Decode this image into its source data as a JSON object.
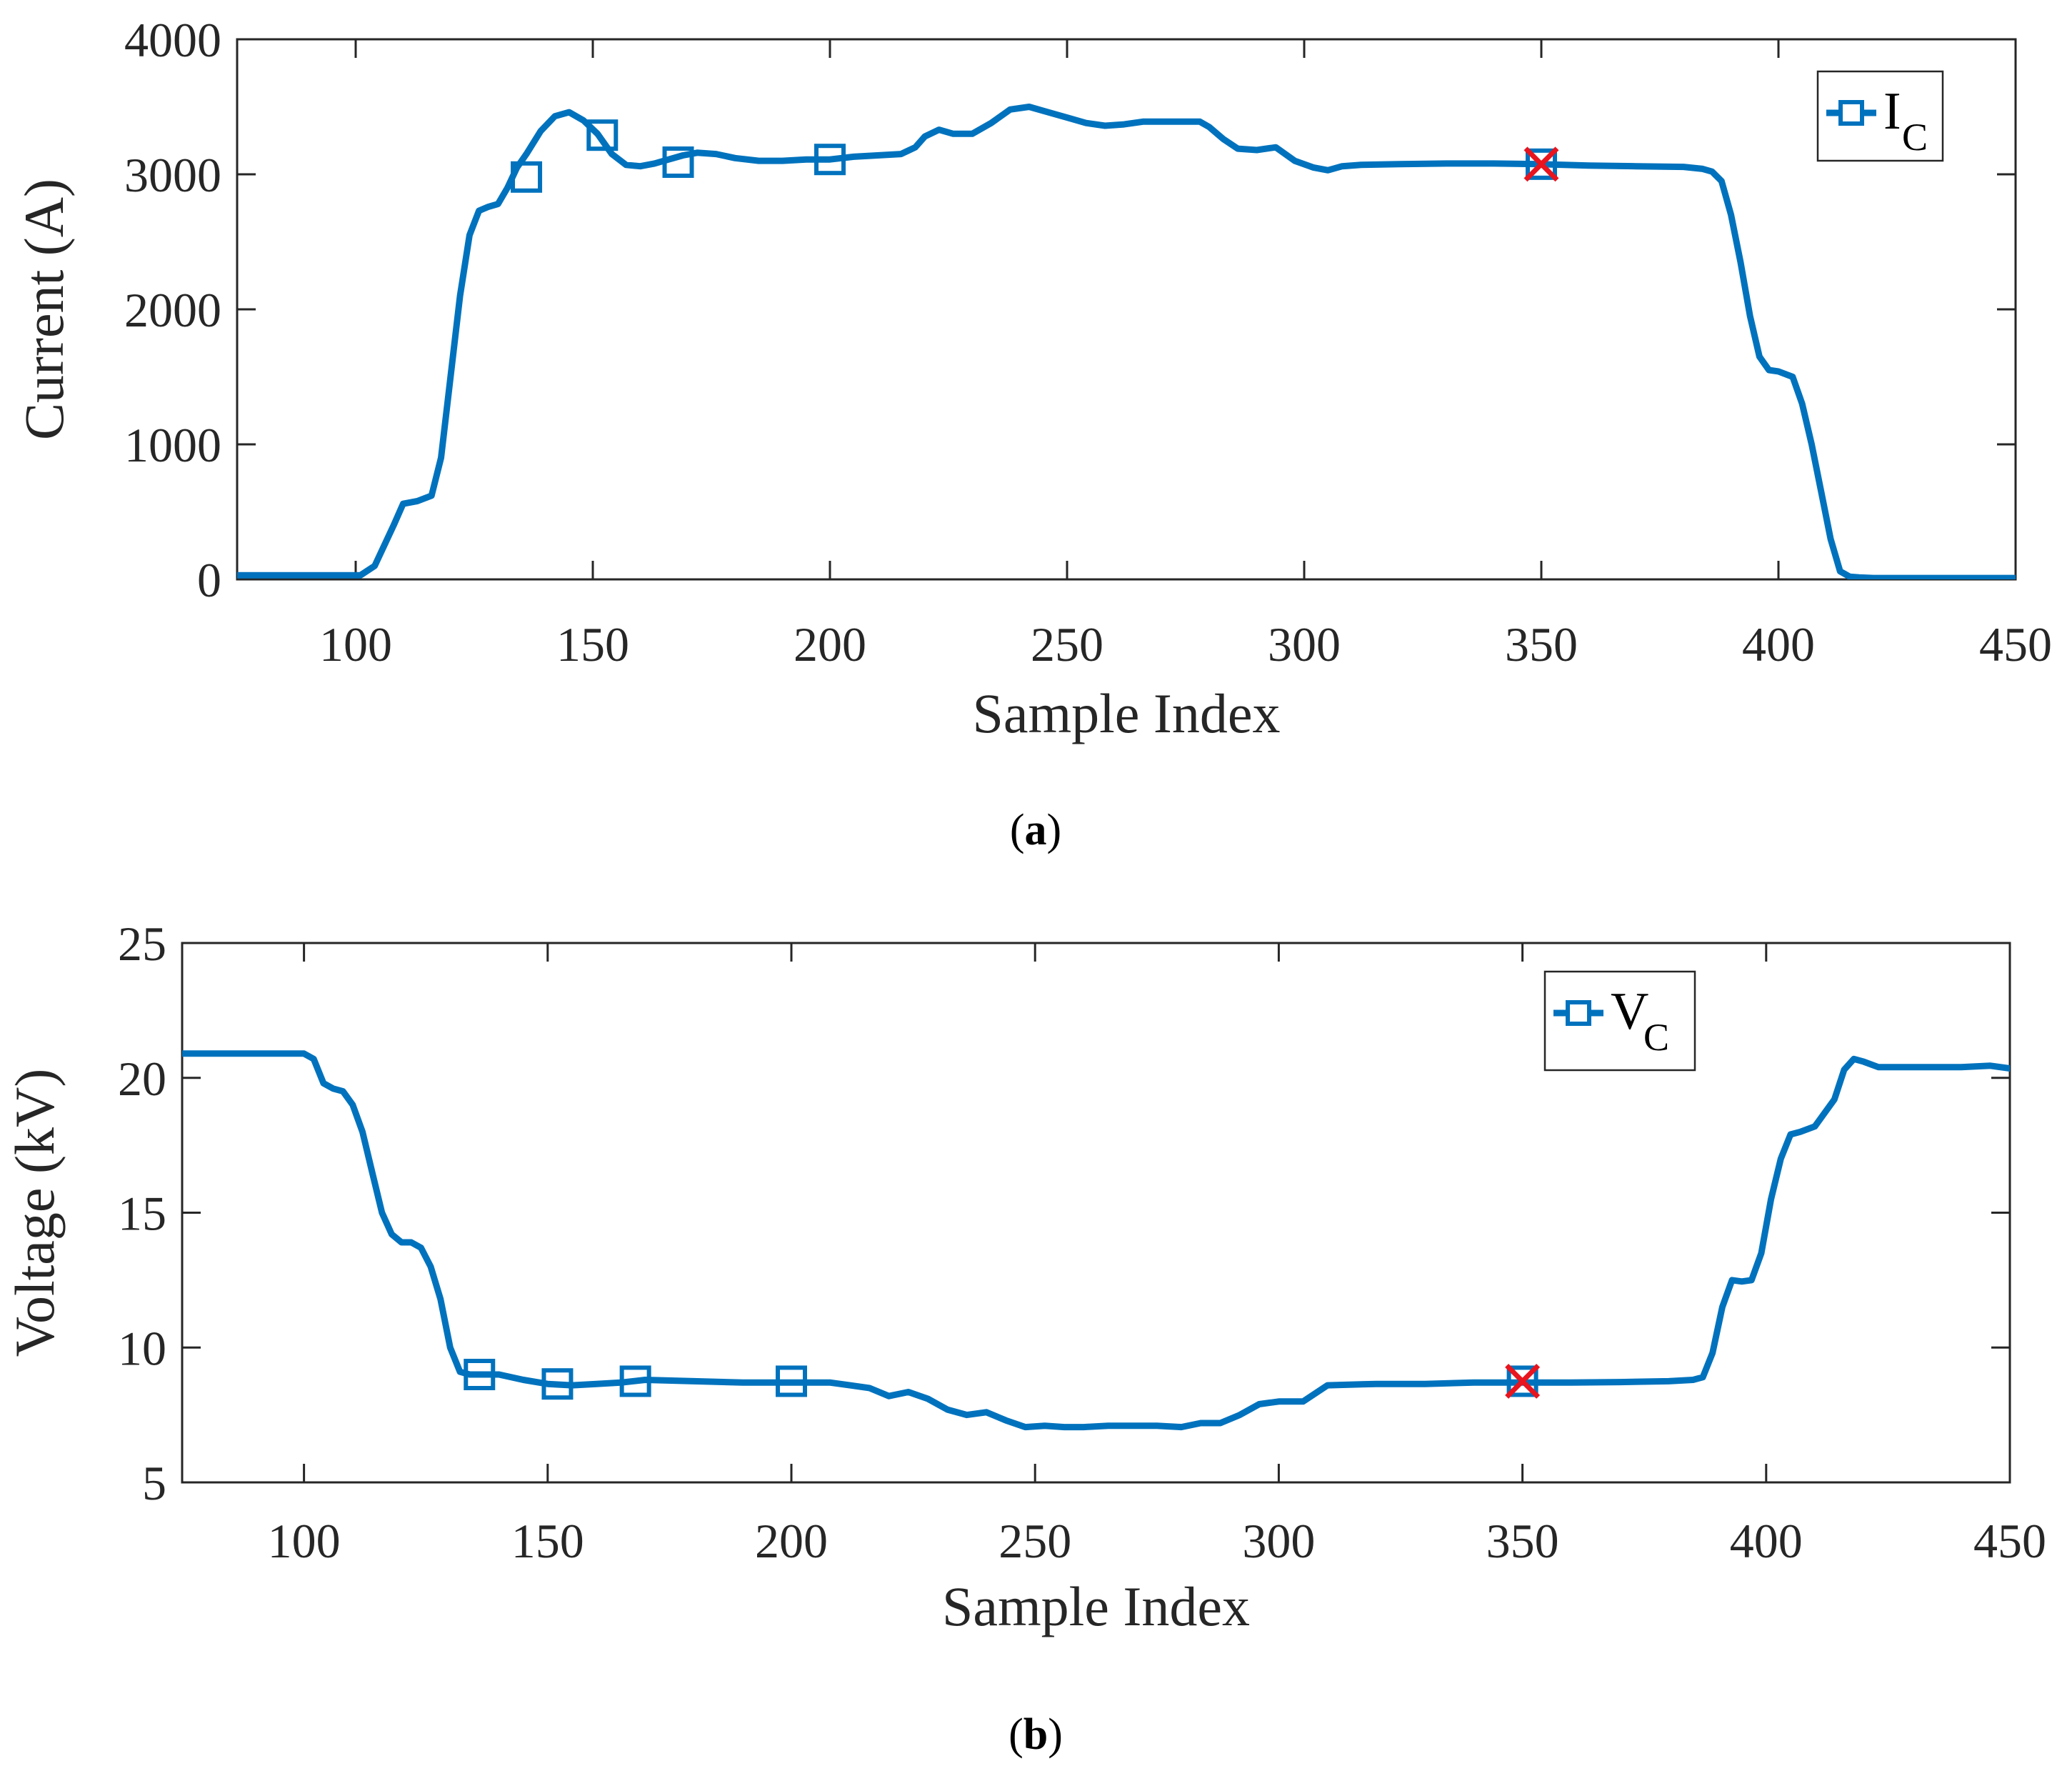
{
  "colors": {
    "series": "#0072BD",
    "cross": "#E8141E",
    "axis": "#262626",
    "background": "#FFFFFF"
  },
  "chart_data": [
    {
      "type": "line",
      "panel_label": {
        "open": "(",
        "letter": "a",
        "close": ")"
      },
      "xlabel": "Sample Index",
      "ylabel": "Current (A)",
      "xlim": [
        75,
        450
      ],
      "ylim": [
        0,
        4000
      ],
      "xticks": [
        100,
        150,
        200,
        250,
        300,
        350,
        400,
        450
      ],
      "yticks": [
        0,
        1000,
        2000,
        3000,
        4000
      ],
      "legend": {
        "label": "I",
        "subscript": "C",
        "placement": "top-right"
      },
      "series": [
        {
          "name": "I_C",
          "x": [
            75,
            95,
            101,
            104,
            108,
            110,
            113,
            116,
            118,
            120,
            122,
            124,
            126,
            128,
            130,
            132,
            134,
            136,
            139,
            142,
            145,
            148,
            151,
            154,
            157,
            160,
            163,
            166,
            169,
            172,
            176,
            180,
            185,
            190,
            195,
            200,
            205,
            210,
            215,
            218,
            220,
            223,
            226,
            230,
            234,
            238,
            242,
            246,
            250,
            254,
            258,
            262,
            266,
            270,
            274,
            278,
            280,
            283,
            286,
            290,
            294,
            298,
            302,
            305,
            308,
            312,
            320,
            330,
            340,
            350,
            360,
            370,
            380,
            384,
            386,
            388,
            390,
            392,
            394,
            396,
            398,
            400,
            403,
            405,
            407,
            409,
            411,
            413,
            415,
            417,
            420,
            430,
            450
          ],
          "values": [
            30,
            30,
            30,
            100,
            400,
            560,
            580,
            620,
            900,
            1500,
            2100,
            2550,
            2730,
            2760,
            2780,
            2900,
            3050,
            3150,
            3320,
            3430,
            3460,
            3400,
            3300,
            3150,
            3070,
            3060,
            3080,
            3110,
            3140,
            3160,
            3150,
            3120,
            3100,
            3100,
            3110,
            3110,
            3130,
            3140,
            3150,
            3200,
            3280,
            3330,
            3300,
            3300,
            3380,
            3480,
            3500,
            3460,
            3420,
            3380,
            3360,
            3370,
            3390,
            3390,
            3390,
            3390,
            3350,
            3260,
            3190,
            3180,
            3200,
            3100,
            3050,
            3030,
            3060,
            3070,
            3075,
            3080,
            3080,
            3075,
            3065,
            3060,
            3055,
            3040,
            3020,
            2950,
            2700,
            2350,
            1950,
            1650,
            1550,
            1540,
            1500,
            1300,
            1000,
            650,
            300,
            60,
            20,
            15,
            10,
            10,
            10
          ]
        }
      ],
      "square_markers": {
        "x": [
          136,
          152,
          168,
          200
        ],
        "y": [
          2980,
          3290,
          3090,
          3110
        ]
      },
      "cross_marker": {
        "x": 350,
        "y": 3075
      }
    },
    {
      "type": "line",
      "panel_label": {
        "open": "(",
        "letter": "b",
        "close": ")"
      },
      "xlabel": "Sample Index",
      "ylabel": "Voltage (kV)",
      "xlim": [
        75,
        450
      ],
      "ylim": [
        5,
        25
      ],
      "xticks": [
        100,
        150,
        200,
        250,
        300,
        350,
        400,
        450
      ],
      "yticks": [
        5,
        10,
        15,
        20,
        25
      ],
      "legend": {
        "label": "V",
        "subscript": "C",
        "placement": "top-right"
      },
      "series": [
        {
          "name": "V_C",
          "x": [
            75,
            100,
            102,
            104,
            106,
            108,
            110,
            112,
            114,
            116,
            118,
            120,
            122,
            124,
            126,
            128,
            130,
            132,
            134,
            136,
            140,
            145,
            150,
            155,
            160,
            165,
            170,
            180,
            190,
            200,
            208,
            212,
            216,
            220,
            224,
            228,
            232,
            236,
            240,
            244,
            248,
            252,
            256,
            260,
            265,
            270,
            275,
            280,
            284,
            288,
            292,
            296,
            300,
            305,
            310,
            320,
            330,
            340,
            350,
            360,
            370,
            380,
            385,
            387,
            389,
            391,
            393,
            395,
            397,
            399,
            401,
            403,
            405,
            407,
            410,
            414,
            416,
            418,
            420,
            423,
            426,
            430,
            440,
            446,
            450
          ],
          "values": [
            20.9,
            20.9,
            20.7,
            19.8,
            19.6,
            19.5,
            19.0,
            18.0,
            16.5,
            15.0,
            14.2,
            13.9,
            13.9,
            13.7,
            13.0,
            11.8,
            10.0,
            9.1,
            9.0,
            9.0,
            9.0,
            8.8,
            8.65,
            8.6,
            8.65,
            8.7,
            8.8,
            8.75,
            8.7,
            8.7,
            8.7,
            8.6,
            8.5,
            8.2,
            8.35,
            8.1,
            7.7,
            7.5,
            7.6,
            7.3,
            7.05,
            7.1,
            7.05,
            7.05,
            7.1,
            7.1,
            7.1,
            7.05,
            7.2,
            7.2,
            7.5,
            7.9,
            8.0,
            8.0,
            8.6,
            8.65,
            8.65,
            8.7,
            8.7,
            8.7,
            8.72,
            8.75,
            8.8,
            8.9,
            9.8,
            11.5,
            12.5,
            12.45,
            12.5,
            13.5,
            15.5,
            17.0,
            17.9,
            18.0,
            18.2,
            19.2,
            20.3,
            20.7,
            20.6,
            20.4,
            20.4,
            20.4,
            20.4,
            20.45,
            20.35
          ]
        }
      ],
      "square_markers": {
        "x": [
          136,
          152,
          168,
          200
        ],
        "y": [
          9.0,
          8.65,
          8.75,
          8.75
        ]
      },
      "cross_marker": {
        "x": 350,
        "y": 8.75
      }
    }
  ]
}
